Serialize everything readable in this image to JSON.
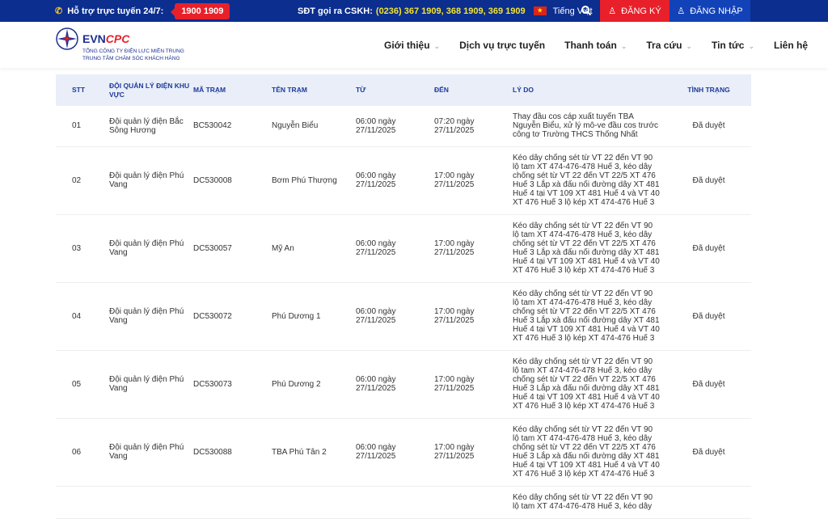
{
  "topbar": {
    "support_label": "Hỗ trợ trực tuyến 24/7:",
    "hotline": "1900 1909",
    "cskh_label": "SĐT gọi ra CSKH:",
    "cskh_numbers": "(0236) 367 1909, 368 1909, 369 1909",
    "language": "Tiếng Việt",
    "register": "ĐĂNG KÝ",
    "login": "ĐĂNG NHẬP"
  },
  "logo": {
    "brand_a": "EVN",
    "brand_b": "CPC",
    "line1": "TỔNG CÔNG TY ĐIỆN LỰC MIỀN TRUNG",
    "line2": "TRUNG TÂM CHĂM SÓC KHÁCH HÀNG"
  },
  "nav": [
    "Giới thiệu",
    "Dịch vụ trực tuyến",
    "Thanh toán",
    "Tra cứu",
    "Tin tức",
    "Liên hệ"
  ],
  "colors": {
    "topbar": "#0b2e8f",
    "accent_red": "#e8202a",
    "header_text": "#1e3a9a"
  },
  "table": {
    "headers": [
      "STT",
      "ĐỘI QUẢN LÝ ĐIỆN KHU VỰC",
      "MÃ TRẠM",
      "TÊN TRẠM",
      "TỪ",
      "ĐẾN",
      "LÝ DO",
      "TÌNH TRẠNG"
    ],
    "rows": [
      [
        "01",
        "Đội quản lý điện Bắc Sông Hương",
        "BC530042",
        "Nguyễn Biểu",
        "06:00 ngày 27/11/2025",
        "07:20 ngày 27/11/2025",
        "Thay đầu cos cáp xuất tuyến TBA Nguyễn Biểu, xử lý mô-ve đầu cos trước công tơ Trường THCS Thống Nhất",
        "Đã duyệt"
      ],
      [
        "02",
        "Đội quản lý điện Phú Vang",
        "DC530008",
        "Bơm Phú Thượng",
        "06:00 ngày 27/11/2025",
        "17:00 ngày 27/11/2025",
        "Kéo dây chống sét từ VT 22 đến VT 90 lộ tam XT 474-476-478 Huế 3, kéo dây chống sét từ VT 22 đến VT 22/5 XT 476 Huế 3 Lắp xà đấu nối đường dây XT 481 Huế 4 tại VT 109 XT 481 Huế 4 và VT 40 XT 476 Huế 3 lộ kép XT 474-476 Huế 3",
        "Đã duyệt"
      ],
      [
        "03",
        "Đội quản lý điện Phú Vang",
        "DC530057",
        "Mỹ An",
        "06:00 ngày 27/11/2025",
        "17:00 ngày 27/11/2025",
        "Kéo dây chống sét từ VT 22 đến VT 90 lộ tam XT 474-476-478 Huế 3, kéo dây chống sét từ VT 22 đến VT 22/5 XT 476 Huế 3 Lắp xà đấu nối đường dây XT 481 Huế 4 tại VT 109 XT 481 Huế 4 và VT 40 XT 476 Huế 3 lộ kép XT 474-476 Huế 3",
        "Đã duyệt"
      ],
      [
        "04",
        "Đội quản lý điện Phú Vang",
        "DC530072",
        "Phú Dương 1",
        "06:00 ngày 27/11/2025",
        "17:00 ngày 27/11/2025",
        "Kéo dây chống sét từ VT 22 đến VT 90 lộ tam XT 474-476-478 Huế 3, kéo dây chống sét từ VT 22 đến VT 22/5 XT 476 Huế 3 Lắp xà đấu nối đường dây XT 481 Huế 4 tại VT 109 XT 481 Huế 4 và VT 40 XT 476 Huế 3 lộ kép XT 474-476 Huế 3",
        "Đã duyệt"
      ],
      [
        "05",
        "Đội quản lý điện Phú Vang",
        "DC530073",
        "Phú Dương 2",
        "06:00 ngày 27/11/2025",
        "17:00 ngày 27/11/2025",
        "Kéo dây chống sét từ VT 22 đến VT 90 lộ tam XT 474-476-478 Huế 3, kéo dây chống sét từ VT 22 đến VT 22/5 XT 476 Huế 3 Lắp xà đấu nối đường dây XT 481 Huế 4 tại VT 109 XT 481 Huế 4 và VT 40 XT 476 Huế 3 lộ kép XT 474-476 Huế 3",
        "Đã duyệt"
      ],
      [
        "06",
        "Đội quản lý điện Phú Vang",
        "DC530088",
        "TBA Phú Tân 2",
        "06:00 ngày 27/11/2025",
        "17:00 ngày 27/11/2025",
        "Kéo dây chống sét từ VT 22 đến VT 90 lộ tam XT 474-476-478 Huế 3, kéo dây chống sét từ VT 22 đến VT 22/5 XT 476 Huế 3 Lắp xà đấu nối đường dây XT 481 Huế 4 tại VT 109 XT 481 Huế 4 và VT 40 XT 476 Huế 3 lộ kép XT 474-476 Huế 3",
        "Đã duyệt"
      ],
      [
        "",
        "",
        "",
        "",
        "",
        "",
        "Kéo dây chống sét từ VT 22 đến VT 90 lộ tam XT 474-476-478 Huế 3, kéo dây",
        ""
      ]
    ]
  }
}
